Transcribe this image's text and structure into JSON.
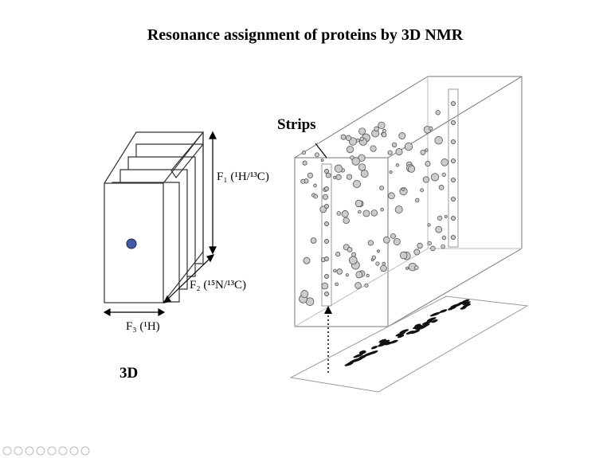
{
  "slide": {
    "title": "Resonance assignment of proteins by 3D NMR",
    "left": {
      "f1": "F₁ (¹H/¹³C)",
      "f2": "F₂ (¹⁵N/¹³C)",
      "f3": "F₃ (¹H)",
      "caption": "3D"
    },
    "right": {
      "strips_label": "Strips"
    }
  }
}
